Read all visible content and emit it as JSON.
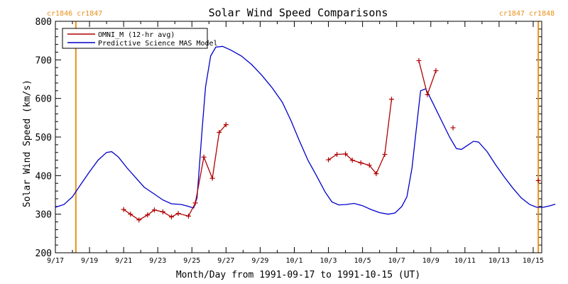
{
  "chart_data": {
    "type": "line",
    "title": "Solar Wind Speed Comparisons",
    "xlabel": "Month/Day from 1991-09-17 to 1991-10-15 (UT)",
    "ylabel": "Solar Wind Speed (km/s)",
    "x_range": [
      "1991-09-17",
      "1991-10-15"
    ],
    "xlim_days": [
      0,
      28.5
    ],
    "ylim": [
      200,
      800
    ],
    "x_ticks": [
      "9/17",
      "9/19",
      "9/21",
      "9/23",
      "9/25",
      "9/27",
      "9/29",
      "10/1",
      "10/3",
      "10/5",
      "10/7",
      "10/9",
      "10/11",
      "10/13",
      "10/15"
    ],
    "y_ticks": [
      200,
      300,
      400,
      500,
      600,
      700,
      800
    ],
    "legend_position": "top-left",
    "grid": false,
    "markers": [
      {
        "day": 1.2,
        "labels": [
          "cr1846",
          "cr1847"
        ],
        "color": "#e8901a"
      },
      {
        "day": 28.3,
        "labels": [
          "cr1847",
          "cr1848"
        ],
        "color": "#e8901a"
      }
    ],
    "series": [
      {
        "name": "OMNI_M (12-hr avg)",
        "color": "#b00000",
        "marker": "+",
        "segments": [
          [
            [
              4.0,
              312
            ],
            [
              4.4,
              300
            ],
            [
              4.9,
              285
            ],
            [
              5.4,
              298
            ],
            [
              5.8,
              311
            ],
            [
              6.3,
              306
            ],
            [
              6.8,
              293
            ],
            [
              7.2,
              302
            ],
            [
              7.8,
              295
            ],
            [
              8.2,
              329
            ],
            [
              8.7,
              448
            ],
            [
              9.2,
              393
            ],
            [
              9.6,
              512
            ],
            [
              10.0,
              532
            ]
          ],
          [
            [
              16.0,
              441
            ],
            [
              16.5,
              455
            ],
            [
              17.0,
              456
            ],
            [
              17.4,
              440
            ],
            [
              17.9,
              433
            ],
            [
              18.4,
              427
            ],
            [
              18.8,
              405
            ],
            [
              19.3,
              455
            ],
            [
              19.7,
              598
            ]
          ],
          [
            [
              21.3,
              698
            ],
            [
              21.8,
              610
            ],
            [
              22.3,
              672
            ]
          ],
          [
            [
              23.3,
              524
            ]
          ],
          [
            [
              28.3,
              387
            ]
          ]
        ]
      },
      {
        "name": "Predictive Science MAS Model",
        "color": "#0000cc",
        "points": [
          [
            0.0,
            318
          ],
          [
            0.5,
            325
          ],
          [
            1.0,
            345
          ],
          [
            1.5,
            378
          ],
          [
            2.0,
            410
          ],
          [
            2.5,
            440
          ],
          [
            3.0,
            460
          ],
          [
            3.3,
            462
          ],
          [
            3.7,
            448
          ],
          [
            4.2,
            420
          ],
          [
            4.8,
            390
          ],
          [
            5.2,
            370
          ],
          [
            5.8,
            352
          ],
          [
            6.3,
            337
          ],
          [
            6.8,
            327
          ],
          [
            7.4,
            325
          ],
          [
            7.8,
            320
          ],
          [
            8.1,
            316
          ],
          [
            8.3,
            342
          ],
          [
            8.6,
            520
          ],
          [
            8.8,
            630
          ],
          [
            9.1,
            710
          ],
          [
            9.4,
            733
          ],
          [
            9.8,
            735
          ],
          [
            10.3,
            725
          ],
          [
            10.9,
            710
          ],
          [
            11.5,
            688
          ],
          [
            12.1,
            660
          ],
          [
            12.7,
            628
          ],
          [
            13.3,
            590
          ],
          [
            13.8,
            543
          ],
          [
            14.3,
            490
          ],
          [
            14.8,
            440
          ],
          [
            15.3,
            400
          ],
          [
            15.8,
            358
          ],
          [
            16.2,
            332
          ],
          [
            16.6,
            324
          ],
          [
            17.0,
            325
          ],
          [
            17.5,
            328
          ],
          [
            18.0,
            322
          ],
          [
            18.5,
            312
          ],
          [
            19.0,
            304
          ],
          [
            19.5,
            300
          ],
          [
            19.9,
            303
          ],
          [
            20.3,
            320
          ],
          [
            20.6,
            345
          ],
          [
            20.9,
            420
          ],
          [
            21.2,
            540
          ],
          [
            21.4,
            620
          ],
          [
            21.7,
            625
          ],
          [
            22.1,
            590
          ],
          [
            22.6,
            545
          ],
          [
            23.1,
            500
          ],
          [
            23.5,
            470
          ],
          [
            23.8,
            468
          ],
          [
            24.2,
            480
          ],
          [
            24.5,
            489
          ],
          [
            24.8,
            487
          ],
          [
            25.3,
            462
          ],
          [
            25.8,
            428
          ],
          [
            26.3,
            397
          ],
          [
            26.8,
            368
          ],
          [
            27.3,
            342
          ],
          [
            27.8,
            325
          ],
          [
            28.2,
            318
          ],
          [
            28.6,
            318
          ],
          [
            29.0,
            322
          ],
          [
            29.3,
            326
          ]
        ]
      }
    ]
  }
}
